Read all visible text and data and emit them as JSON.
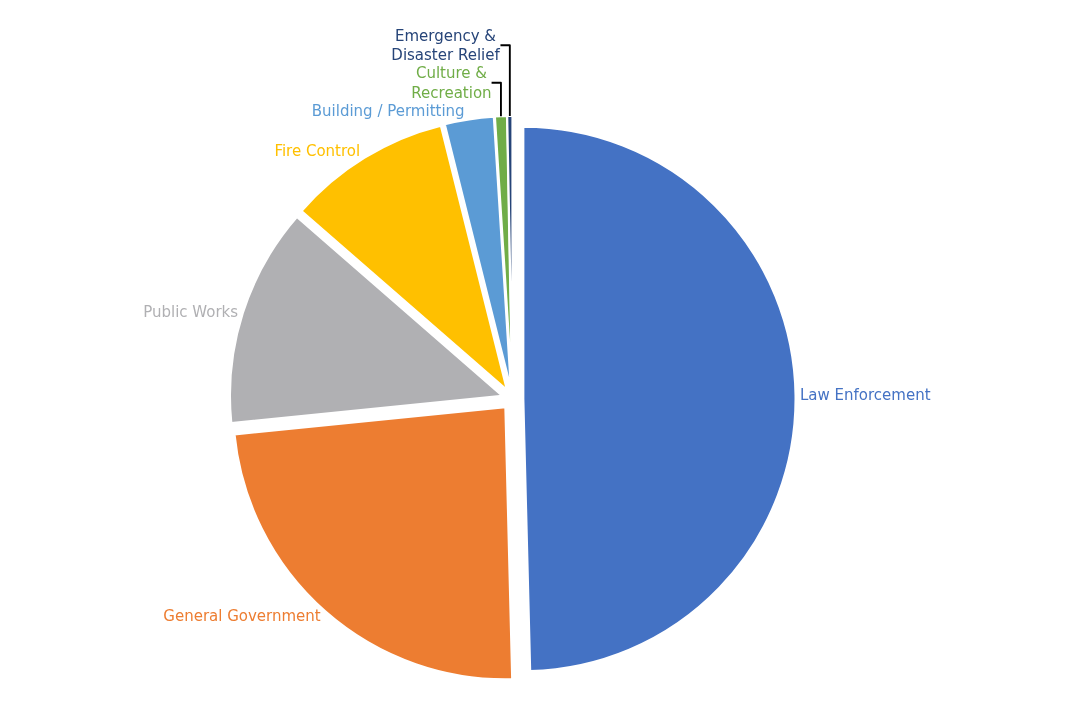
{
  "chart_data": {
    "type": "pie",
    "categories": [
      "Law Enforcement",
      "General Government",
      "Public Works",
      "Fire Control",
      "Building / Permitting",
      "Culture & Recreation",
      "Emergency & Disaster Relief"
    ],
    "values": [
      49.6,
      23.8,
      13,
      9.7,
      2.9,
      0.7,
      0.3
    ],
    "colors": [
      "#4472c4",
      "#ed7d31",
      "#b0b0b3",
      "#ffc000",
      "#5b9bd5",
      "#70ad47",
      "#264478"
    ],
    "legend": false
  }
}
